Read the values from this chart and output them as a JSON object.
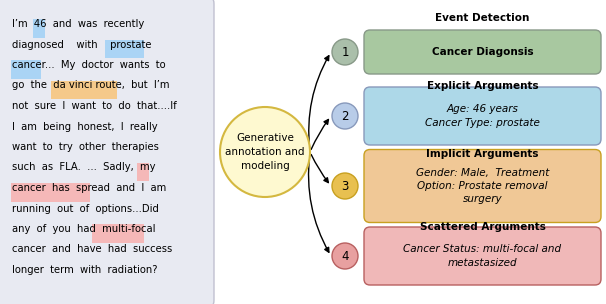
{
  "left_bg_color": "#e8eaf2",
  "left_bg_edge": "#c0c0d0",
  "center_circle": {
    "label": "Generative\nannotation and\nmodeling",
    "bg_color": "#fef9d0",
    "edge_color": "#d4b840"
  },
  "right_nodes": [
    {
      "number": "1",
      "circle_color": "#aabfaa",
      "circle_edge": "#889988",
      "box_color": "#a8c8a0",
      "box_edge": "#889988",
      "section_label": "Event Detection",
      "content_lines": [
        "Cancer Diagonsis"
      ],
      "content_italic_parts": [
        false
      ],
      "content_bold": true,
      "content_italic": false
    },
    {
      "number": "2",
      "circle_color": "#b8cce8",
      "circle_edge": "#8899bb",
      "box_color": "#add8e8",
      "box_edge": "#8899bb",
      "section_label": "Explicit Arguments",
      "content_lines": [
        "Age: 46 years",
        "Cancer Type: prostate"
      ],
      "content_bold": false,
      "content_italic": true
    },
    {
      "number": "3",
      "circle_color": "#e8c050",
      "circle_edge": "#c8a020",
      "box_color": "#f0c896",
      "box_edge": "#c8a020",
      "section_label": "Implicit Arguments",
      "content_lines": [
        "Gender: Male,  Treatment",
        "Option: Prostate removal",
        "surgery"
      ],
      "content_bold": false,
      "content_italic": true
    },
    {
      "number": "4",
      "circle_color": "#e8a0a0",
      "circle_edge": "#b86060",
      "box_color": "#f0b8b8",
      "box_edge": "#b86060",
      "section_label": "Scattered Arguments",
      "content_lines": [
        "Cancer Status: multi-focal and",
        "metastasized"
      ],
      "content_bold": false,
      "content_italic": true
    }
  ],
  "highlights": [
    {
      "line": 0,
      "word": "46",
      "color": "#aad4f5"
    },
    {
      "line": 1,
      "word": "prostate",
      "color": "#aad4f5"
    },
    {
      "line": 2,
      "word": "cancer",
      "color": "#aad4f5"
    },
    {
      "line": 3,
      "phrase": "da vinci route",
      "color": "#f5c98a"
    },
    {
      "line": 7,
      "word": "my",
      "color": "#f5b8b8"
    },
    {
      "line": 8,
      "phrase": "cancer has spread",
      "color": "#f5b8b8"
    },
    {
      "line": 10,
      "phrase": "multi-focal",
      "color": "#f5b8b8"
    }
  ],
  "text_lines": [
    "I’m  46  and  was  recently",
    "diagnosed    with    prostate",
    "cancer...  My  doctor  wants  to",
    "go  the  da vinci route,  but  I’m",
    "not  sure  I  want  to  do  that....If",
    "I  am  being  honest,  I  really",
    "want  to  try  other  therapies",
    "such  as  FLA.  ...  Sadly,  my",
    "cancer  has  spread  and  I  am",
    "running  out  of  options...Did",
    "any  of  you  had  multi-focal",
    "cancer  and  have  had  success",
    "longer  term  with  radiation?"
  ]
}
